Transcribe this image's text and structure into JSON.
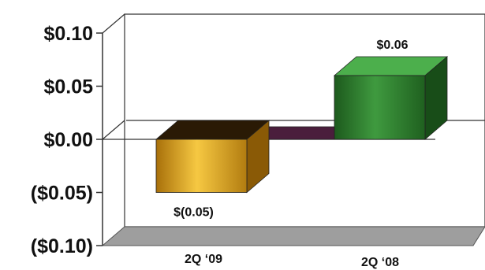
{
  "chart_data": {
    "type": "bar",
    "title": "",
    "xlabel": "",
    "ylabel": "",
    "categories": [
      "2Q ‘09",
      "2Q ‘08"
    ],
    "values": [
      -0.05,
      0.06
    ],
    "data_labels": [
      "$(0.05)",
      "$0.06"
    ],
    "ylim": [
      -0.1,
      0.1
    ],
    "y_ticks": [
      0.1,
      0.05,
      0.0,
      -0.05,
      -0.1
    ],
    "y_tick_labels": [
      "$0.10",
      "$0.05",
      "$0.00",
      "($0.05)",
      "($0.10)"
    ],
    "grid": false,
    "legend": "none",
    "colors": {
      "bar_1": "#e0a21c",
      "bar_2": "#2e7d2e",
      "floor": "#9e9e9e",
      "connector": "#4a1e3c"
    }
  }
}
